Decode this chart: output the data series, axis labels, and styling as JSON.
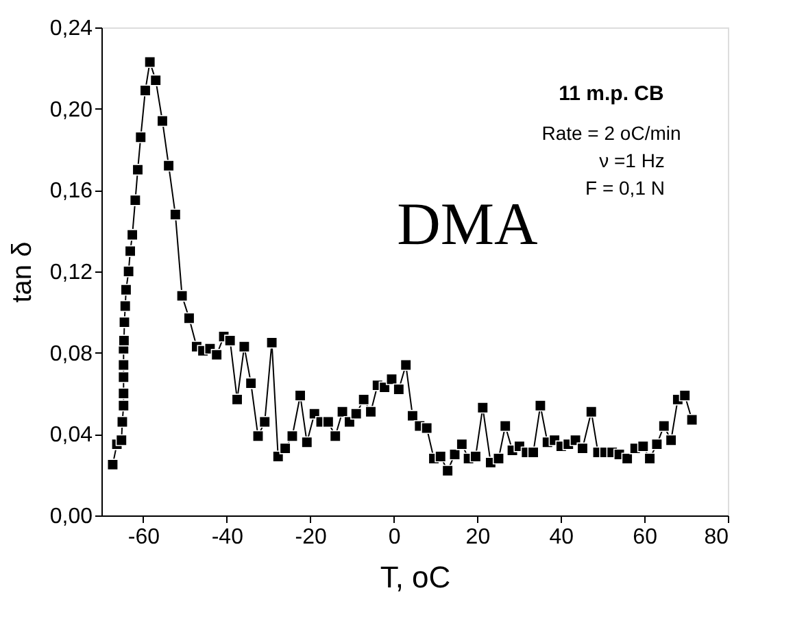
{
  "chart_data": {
    "type": "line",
    "xlabel": "T, oC",
    "ylabel": "tan δ",
    "annotations": [
      "11 m.p. CB",
      "Rate = 2 oC/min",
      "ν =1 Hz",
      "F = 0,1 N",
      "DMA"
    ],
    "x": [
      -67.3,
      -66.3,
      -65.2,
      -65.0,
      -64.7,
      -64.7,
      -64.7,
      -64.7,
      -64.7,
      -64.6,
      -64.5,
      -64.3,
      -64.1,
      -63.5,
      -63.1,
      -62.6,
      -61.9,
      -61.3,
      -60.6,
      -59.5,
      -58.4,
      -57.0,
      -55.4,
      -53.9,
      -52.3,
      -50.7,
      -49.0,
      -47.2,
      -45.7,
      -44.0,
      -42.4,
      -40.7,
      -39.2,
      -37.5,
      -35.8,
      -34.2,
      -32.5,
      -30.9,
      -29.2,
      -27.7,
      -26.0,
      -24.3,
      -22.4,
      -20.8,
      -19.0,
      -17.4,
      -15.7,
      -14.0,
      -12.3,
      -10.6,
      -9.0,
      -7.2,
      -5.5,
      -3.9,
      -2.2,
      -0.5,
      1.2,
      2.9,
      4.5,
      6.2,
      7.9,
      9.6,
      11.2,
      12.9,
      14.6,
      16.3,
      17.9,
      19.6,
      21.3,
      23.2,
      25.1,
      26.7,
      28.4,
      30.1,
      31.8,
      33.4,
      35.1,
      36.8,
      38.5,
      40.1,
      41.8,
      43.5,
      45.2,
      47.3,
      48.9,
      50.6,
      52.3,
      54.0,
      55.9,
      57.8,
      59.7,
      61.3,
      63.0,
      64.7,
      66.4,
      68.0,
      69.7,
      71.4
    ],
    "series": [
      {
        "color": "#000000",
        "values": [
          0.025,
          0.035,
          0.037,
          0.046,
          0.054,
          0.06,
          0.068,
          0.074,
          0.082,
          0.086,
          0.095,
          0.103,
          0.111,
          0.12,
          0.13,
          0.138,
          0.155,
          0.17,
          0.186,
          0.209,
          0.223,
          0.214,
          0.194,
          0.172,
          0.148,
          0.108,
          0.097,
          0.083,
          0.081,
          0.082,
          0.079,
          0.088,
          0.086,
          0.057,
          0.083,
          0.065,
          0.039,
          0.046,
          0.085,
          0.029,
          0.033,
          0.039,
          0.059,
          0.036,
          0.05,
          0.046,
          0.046,
          0.039,
          0.051,
          0.046,
          0.05,
          0.057,
          0.051,
          0.064,
          0.063,
          0.067,
          0.062,
          0.074,
          0.049,
          0.044,
          0.043,
          0.028,
          0.029,
          0.022,
          0.03,
          0.035,
          0.028,
          0.029,
          0.053,
          0.026,
          0.028,
          0.044,
          0.032,
          0.034,
          0.031,
          0.031,
          0.054,
          0.036,
          0.037,
          0.034,
          0.035,
          0.037,
          0.033,
          0.051,
          0.031,
          0.031,
          0.031,
          0.03,
          0.028,
          0.033,
          0.034,
          0.028,
          0.035,
          0.044,
          0.037,
          0.057,
          0.059,
          0.047
        ]
      }
    ],
    "xlim": [
      -70,
      80
    ],
    "xticks": [
      -60,
      -40,
      -20,
      0,
      20,
      40,
      60,
      80
    ],
    "ylim": [
      0,
      0.24
    ],
    "yticks": [
      {
        "value": 0,
        "label": "0,00"
      },
      {
        "value": 0.04,
        "label": "0,04"
      },
      {
        "value": 0.08,
        "label": "0,08"
      },
      {
        "value": 0.12,
        "label": "0,12"
      },
      {
        "value": 0.16,
        "label": "0,16"
      },
      {
        "value": 0.2,
        "label": "0,20"
      },
      {
        "value": 0.24,
        "label": "0,24"
      }
    ],
    "grid": false,
    "marker": "square",
    "line_style": "solid"
  }
}
